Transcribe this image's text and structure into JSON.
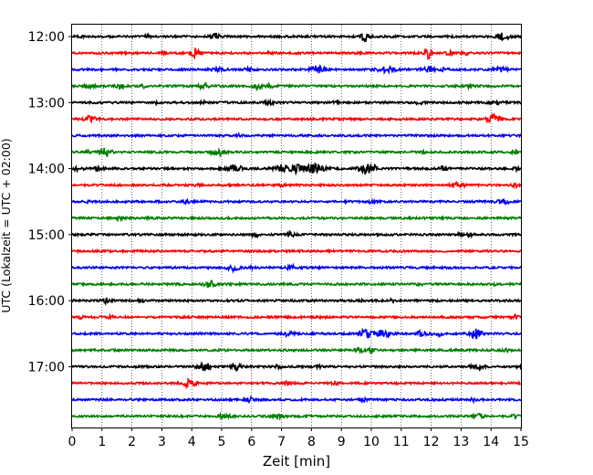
{
  "chart_data": {
    "type": "line",
    "title": "",
    "xlabel": "Zeit  [min]",
    "ylabel": "UTC (Lokalzeit = UTC + 02:00)",
    "xlim": [
      0,
      15
    ],
    "x_ticks": [
      "0",
      "1",
      "2",
      "3",
      "4",
      "5",
      "6",
      "7",
      "8",
      "9",
      "10",
      "11",
      "12",
      "13",
      "14",
      "15"
    ],
    "y_tick_labels": [
      {
        "trace_index": 0,
        "label": "12:00"
      },
      {
        "trace_index": 4,
        "label": "13:00"
      },
      {
        "trace_index": 8,
        "label": "14:00"
      },
      {
        "trace_index": 12,
        "label": "15:00"
      },
      {
        "trace_index": 16,
        "label": "16:00"
      },
      {
        "trace_index": 20,
        "label": "17:00"
      }
    ],
    "trace_interval_min": 15,
    "color_cycle": [
      "#000000",
      "#ff0000",
      "#0000ff",
      "#008000"
    ],
    "grid": {
      "vertical": true,
      "style": "dotted"
    },
    "traces": [
      {
        "start": "12:00",
        "color": "#000000",
        "events": [
          [
            4.8,
            3,
            0.15
          ],
          [
            9.8,
            5,
            0.15
          ],
          [
            14.4,
            4,
            0.2
          ],
          [
            0.3,
            1,
            0.1
          ],
          [
            2.5,
            1,
            0.1
          ]
        ]
      },
      {
        "start": "12:15",
        "color": "#ff0000",
        "events": [
          [
            4.1,
            4,
            0.15
          ],
          [
            11.9,
            6,
            0.1
          ],
          [
            3.1,
            1.5,
            0.1
          ],
          [
            6.6,
            1.5,
            0.1
          ],
          [
            12.6,
            2,
            0.1
          ],
          [
            13.2,
            1.5,
            0.1
          ]
        ]
      },
      {
        "start": "12:30",
        "color": "#0000ff",
        "events": [
          [
            4.9,
            1.5,
            0.2
          ],
          [
            5.9,
            2,
            0.1
          ],
          [
            8.2,
            3.5,
            0.25
          ],
          [
            10.5,
            3.5,
            0.25
          ],
          [
            11.9,
            3,
            0.2
          ],
          [
            12.4,
            2,
            0.15
          ],
          [
            14.3,
            2.5,
            0.2
          ]
        ]
      },
      {
        "start": "12:45",
        "color": "#008000",
        "events": [
          [
            0.6,
            2,
            0.15
          ],
          [
            1.6,
            2,
            0.15
          ],
          [
            2.4,
            1.5,
            0.1
          ],
          [
            4.4,
            3,
            0.15
          ],
          [
            6.2,
            3,
            0.15
          ],
          [
            6.6,
            2,
            0.1
          ],
          [
            13.3,
            2,
            0.1
          ]
        ]
      },
      {
        "start": "13:00",
        "color": "#000000",
        "events": [
          [
            2.8,
            1,
            0.05
          ],
          [
            4.4,
            1.5,
            0.1
          ],
          [
            6.6,
            2,
            0.15
          ],
          [
            8.8,
            1.5,
            0.1
          ],
          [
            11.6,
            2,
            0.1
          ],
          [
            14.2,
            1.5,
            0.2
          ]
        ]
      },
      {
        "start": "13:15",
        "color": "#ff0000",
        "events": [
          [
            0.6,
            3,
            0.2
          ],
          [
            14.1,
            6,
            0.2
          ]
        ]
      },
      {
        "start": "13:30",
        "color": "#0000ff",
        "events": [
          [
            5.6,
            1.5,
            0.1
          ]
        ]
      },
      {
        "start": "13:45",
        "color": "#008000",
        "events": [
          [
            0.5,
            1.5,
            0.1
          ],
          [
            1.1,
            4,
            0.2
          ],
          [
            4.9,
            3,
            0.2
          ],
          [
            11.8,
            1.5,
            0.1
          ],
          [
            14.8,
            2,
            0.1
          ]
        ]
      },
      {
        "start": "14:00",
        "color": "#000000",
        "events": [
          [
            0.2,
            2,
            0.15
          ],
          [
            0.9,
            2,
            0.15
          ],
          [
            5.4,
            4,
            0.25
          ],
          [
            7.0,
            4,
            0.2
          ],
          [
            7.5,
            4,
            0.2
          ],
          [
            8.1,
            5,
            0.3
          ],
          [
            9.8,
            5,
            0.25
          ],
          [
            10.1,
            2,
            0.1
          ],
          [
            12.4,
            2,
            0.15
          ],
          [
            14.9,
            2,
            0.1
          ]
        ]
      },
      {
        "start": "14:15",
        "color": "#ff0000",
        "events": [
          [
            4.2,
            1,
            0.1
          ],
          [
            7.0,
            1,
            0.1
          ],
          [
            12.9,
            3,
            0.2
          ],
          [
            14.8,
            2,
            0.1
          ]
        ]
      },
      {
        "start": "14:30",
        "color": "#0000ff",
        "events": [
          [
            0.5,
            1,
            0.1
          ],
          [
            3.8,
            2,
            0.15
          ],
          [
            10.0,
            1.5,
            0.1
          ],
          [
            14.4,
            3,
            0.2
          ]
        ]
      },
      {
        "start": "14:45",
        "color": "#008000",
        "events": [
          [
            1.5,
            1.5,
            0.15
          ],
          [
            2.6,
            1,
            0.1
          ]
        ]
      },
      {
        "start": "15:00",
        "color": "#000000",
        "events": [
          [
            6.1,
            3,
            0.1
          ],
          [
            7.3,
            3,
            0.1
          ],
          [
            13.0,
            2,
            0.1
          ],
          [
            13.3,
            2,
            0.1
          ]
        ]
      },
      {
        "start": "15:15",
        "color": "#ff0000",
        "events": []
      },
      {
        "start": "15:30",
        "color": "#0000ff",
        "events": [
          [
            5.4,
            3,
            0.2
          ],
          [
            7.3,
            2.5,
            0.15
          ],
          [
            6.0,
            1,
            0.1
          ]
        ]
      },
      {
        "start": "15:45",
        "color": "#008000",
        "events": [
          [
            4.6,
            3,
            0.2
          ],
          [
            11.6,
            1.5,
            0.1
          ],
          [
            14.1,
            1,
            0.1
          ]
        ]
      },
      {
        "start": "16:00",
        "color": "#000000",
        "events": [
          [
            1.1,
            2.5,
            0.15
          ],
          [
            2.3,
            1.5,
            0.1
          ],
          [
            9.6,
            2,
            0.1
          ],
          [
            10.7,
            1.5,
            0.1
          ]
        ]
      },
      {
        "start": "16:15",
        "color": "#ff0000",
        "events": [
          [
            0.3,
            2,
            0.1
          ],
          [
            1.3,
            1.5,
            0.1
          ],
          [
            14.8,
            2,
            0.1
          ]
        ]
      },
      {
        "start": "16:30",
        "color": "#0000ff",
        "events": [
          [
            7.2,
            2,
            0.15
          ],
          [
            9.8,
            4,
            0.2
          ],
          [
            10.4,
            3.5,
            0.25
          ],
          [
            11.7,
            3,
            0.15
          ],
          [
            12.2,
            2.5,
            0.15
          ],
          [
            13.5,
            5,
            0.2
          ]
        ]
      },
      {
        "start": "16:45",
        "color": "#008000",
        "events": [
          [
            9.6,
            2,
            0.15
          ],
          [
            10.0,
            2,
            0.1
          ],
          [
            14.5,
            1.5,
            0.1
          ]
        ]
      },
      {
        "start": "17:00",
        "color": "#000000",
        "events": [
          [
            4.4,
            5,
            0.2
          ],
          [
            5.5,
            4,
            0.15
          ],
          [
            6.9,
            2,
            0.1
          ],
          [
            8.2,
            2,
            0.1
          ],
          [
            13.5,
            3,
            0.2
          ],
          [
            15.0,
            2,
            0.1
          ]
        ]
      },
      {
        "start": "17:15",
        "color": "#ff0000",
        "events": [
          [
            3.9,
            4,
            0.25
          ],
          [
            7.2,
            1.5,
            0.1
          ],
          [
            8.8,
            1.5,
            0.1
          ]
        ]
      },
      {
        "start": "17:30",
        "color": "#0000ff",
        "events": [
          [
            5.9,
            2.5,
            0.15
          ],
          [
            9.7,
            2,
            0.1
          ],
          [
            13.4,
            1.5,
            0.1
          ]
        ]
      },
      {
        "start": "17:45",
        "color": "#008000",
        "events": [
          [
            5.1,
            2,
            0.2
          ],
          [
            6.9,
            2,
            0.15
          ],
          [
            13.6,
            2.5,
            0.15
          ],
          [
            14.8,
            1.5,
            0.1
          ]
        ]
      }
    ]
  }
}
